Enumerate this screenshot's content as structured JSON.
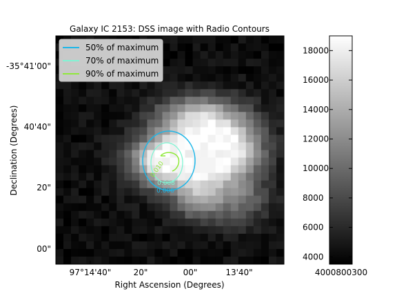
{
  "chart_data": {
    "type": "heatmap",
    "title": "Galaxy IC 2153: DSS image with Radio Contours",
    "xlabel": "Right Ascension (Degrees)",
    "ylabel": "Declination (Degrees)",
    "x_ticks": [
      "97°14'40\"",
      "20\"",
      "00\"",
      "13'40\""
    ],
    "y_ticks": [
      "-35°41'00\"",
      "40'40\"",
      "20\"",
      "00\""
    ],
    "colormap": "gray",
    "colorbar": {
      "ticks": [
        4000,
        6000,
        8000,
        10000,
        12000,
        14000,
        16000,
        18000
      ],
      "range": [
        3500,
        19000
      ],
      "bottom_label": "4000800300"
    },
    "legend": {
      "position": "top-left",
      "entries": [
        {
          "label": "50% of maximum",
          "color": "#1bb6e8"
        },
        {
          "label": "70% of maximum",
          "color": "#7ff5d4"
        },
        {
          "label": "90% of maximum",
          "color": "#8fe93a"
        }
      ]
    },
    "contour_labels": [
      {
        "text": "0.006",
        "color": "#1bb6e8"
      },
      {
        "text": "0.008",
        "color": "#7ff5d4"
      },
      {
        "text": "0.010",
        "color": "#8fe93a"
      }
    ],
    "galaxy": {
      "peak": 18600,
      "background": 4300
    }
  }
}
